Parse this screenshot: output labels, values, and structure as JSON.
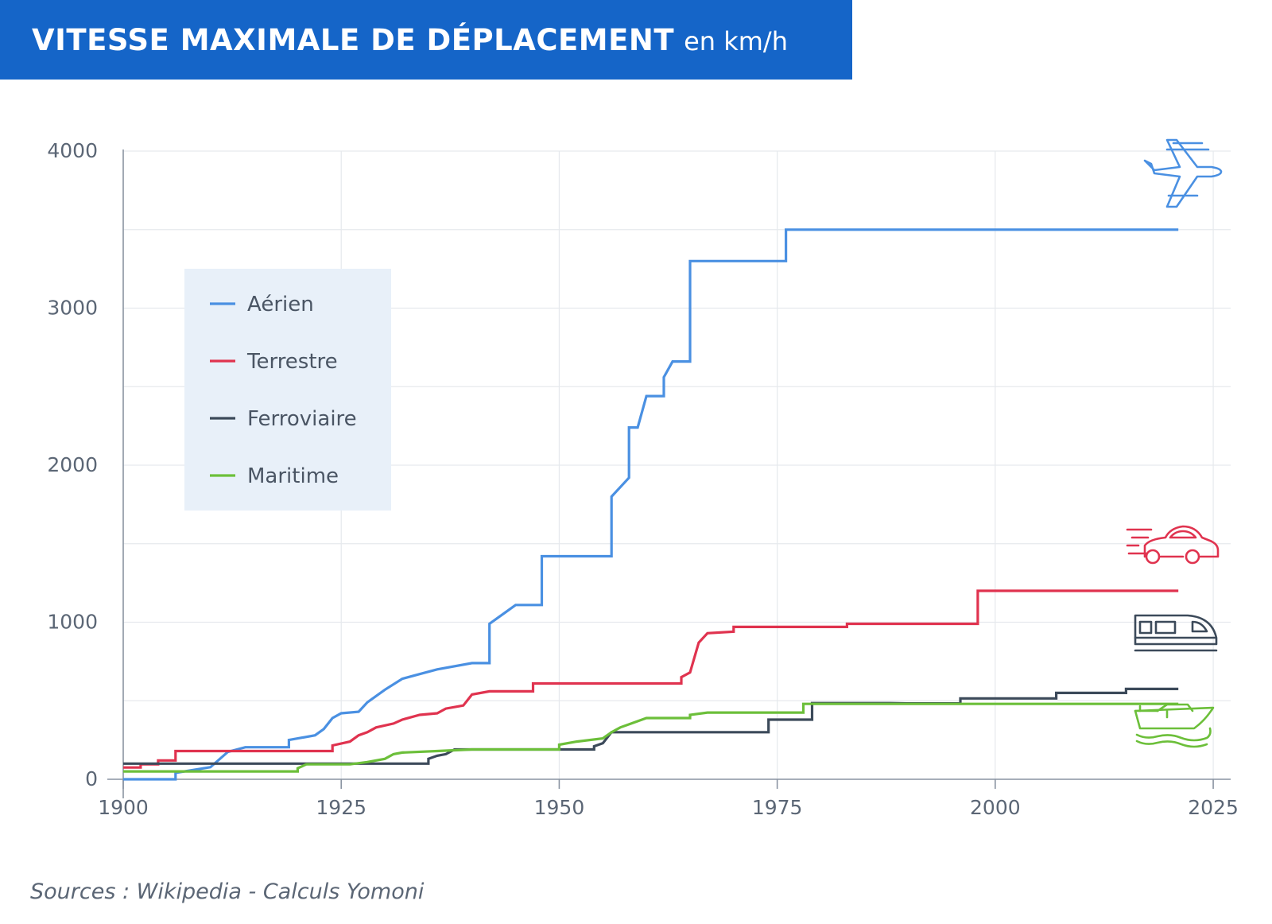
{
  "header": {
    "title": "VITESSE MAXIMALE DE DÉPLACEMENT",
    "unit": "en km/h"
  },
  "source": "Sources : Wikipedia - Calculs Yomoni",
  "colors": {
    "header_bg": "#1565c8",
    "aerien": "#4a90e2",
    "terrestre": "#e0334f",
    "ferroviaire": "#3c4a5a",
    "maritime": "#6cbf3a",
    "legend_bg": "#e8f0f9",
    "grid": "#e6e9ed",
    "axis": "#8a94a2"
  },
  "icons": [
    "airplane-icon",
    "car-icon",
    "train-icon",
    "boat-icon"
  ],
  "chart_data": {
    "type": "line",
    "step": true,
    "title": "VITESSE MAXIMALE DE DÉPLACEMENT en km/h",
    "xlabel": "",
    "ylabel": "",
    "xlim": [
      1900,
      2027
    ],
    "ylim": [
      0,
      4000
    ],
    "x_ticks": [
      1900,
      1925,
      1950,
      1975,
      2000,
      2025
    ],
    "y_ticks": [
      0,
      1000,
      2000,
      3000,
      4000
    ],
    "grid": true,
    "legend_position": "upper-left",
    "series": [
      {
        "name": "Aérien",
        "color_key": "aerien",
        "points": [
          [
            1900,
            0
          ],
          [
            1906,
            0
          ],
          [
            1906,
            41
          ],
          [
            1910,
            77
          ],
          [
            1912,
            174
          ],
          [
            1914,
            204
          ],
          [
            1919,
            204
          ],
          [
            1919,
            250
          ],
          [
            1922,
            280
          ],
          [
            1923,
            320
          ],
          [
            1924,
            390
          ],
          [
            1925,
            420
          ],
          [
            1927,
            430
          ],
          [
            1928,
            490
          ],
          [
            1930,
            570
          ],
          [
            1932,
            640
          ],
          [
            1934,
            670
          ],
          [
            1936,
            700
          ],
          [
            1940,
            740
          ],
          [
            1942,
            740
          ],
          [
            1942,
            990
          ],
          [
            1945,
            1110
          ],
          [
            1948,
            1110
          ],
          [
            1948,
            1420
          ],
          [
            1956,
            1420
          ],
          [
            1956,
            1800
          ],
          [
            1958,
            1920
          ],
          [
            1958,
            2240
          ],
          [
            1959,
            2240
          ],
          [
            1960,
            2440
          ],
          [
            1962,
            2440
          ],
          [
            1962,
            2560
          ],
          [
            1963,
            2660
          ],
          [
            1965,
            2660
          ],
          [
            1965,
            3300
          ],
          [
            1976,
            3300
          ],
          [
            1976,
            3500
          ],
          [
            2021,
            3500
          ]
        ]
      },
      {
        "name": "Terrestre",
        "color_key": "terrestre",
        "points": [
          [
            1900,
            75
          ],
          [
            1902,
            75
          ],
          [
            1902,
            95
          ],
          [
            1904,
            95
          ],
          [
            1904,
            120
          ],
          [
            1906,
            120
          ],
          [
            1906,
            180
          ],
          [
            1924,
            180
          ],
          [
            1924,
            215
          ],
          [
            1926,
            240
          ],
          [
            1927,
            280
          ],
          [
            1928,
            300
          ],
          [
            1929,
            330
          ],
          [
            1931,
            355
          ],
          [
            1932,
            380
          ],
          [
            1934,
            410
          ],
          [
            1936,
            420
          ],
          [
            1937,
            450
          ],
          [
            1939,
            470
          ],
          [
            1940,
            540
          ],
          [
            1942,
            560
          ],
          [
            1947,
            560
          ],
          [
            1947,
            610
          ],
          [
            1964,
            610
          ],
          [
            1964,
            650
          ],
          [
            1965,
            680
          ],
          [
            1966,
            870
          ],
          [
            1967,
            930
          ],
          [
            1970,
            940
          ],
          [
            1970,
            970
          ],
          [
            1983,
            970
          ],
          [
            1983,
            990
          ],
          [
            1998,
            990
          ],
          [
            1998,
            1200
          ],
          [
            2021,
            1200
          ]
        ]
      },
      {
        "name": "Ferroviaire",
        "color_key": "ferroviaire",
        "points": [
          [
            1900,
            100
          ],
          [
            1935,
            100
          ],
          [
            1935,
            130
          ],
          [
            1936,
            150
          ],
          [
            1937,
            160
          ],
          [
            1938,
            190
          ],
          [
            1954,
            190
          ],
          [
            1954,
            210
          ],
          [
            1955,
            230
          ],
          [
            1956,
            300
          ],
          [
            1974,
            300
          ],
          [
            1974,
            380
          ],
          [
            1979,
            380
          ],
          [
            1979,
            485
          ],
          [
            1988,
            485
          ],
          [
            1990,
            483
          ],
          [
            1996,
            483
          ],
          [
            1996,
            515
          ],
          [
            2007,
            515
          ],
          [
            2007,
            550
          ],
          [
            2015,
            550
          ],
          [
            2015,
            575
          ],
          [
            2021,
            575
          ]
        ]
      },
      {
        "name": "Maritime",
        "color_key": "maritime",
        "points": [
          [
            1900,
            50
          ],
          [
            1920,
            50
          ],
          [
            1920,
            70
          ],
          [
            1921,
            95
          ],
          [
            1926,
            95
          ],
          [
            1928,
            110
          ],
          [
            1930,
            130
          ],
          [
            1931,
            160
          ],
          [
            1932,
            170
          ],
          [
            1936,
            180
          ],
          [
            1940,
            190
          ],
          [
            1950,
            190
          ],
          [
            1950,
            220
          ],
          [
            1952,
            240
          ],
          [
            1955,
            260
          ],
          [
            1956,
            300
          ],
          [
            1957,
            330
          ],
          [
            1958,
            350
          ],
          [
            1960,
            390
          ],
          [
            1965,
            390
          ],
          [
            1965,
            410
          ],
          [
            1967,
            425
          ],
          [
            1978,
            425
          ],
          [
            1978,
            480
          ],
          [
            2021,
            480
          ]
        ]
      }
    ]
  }
}
